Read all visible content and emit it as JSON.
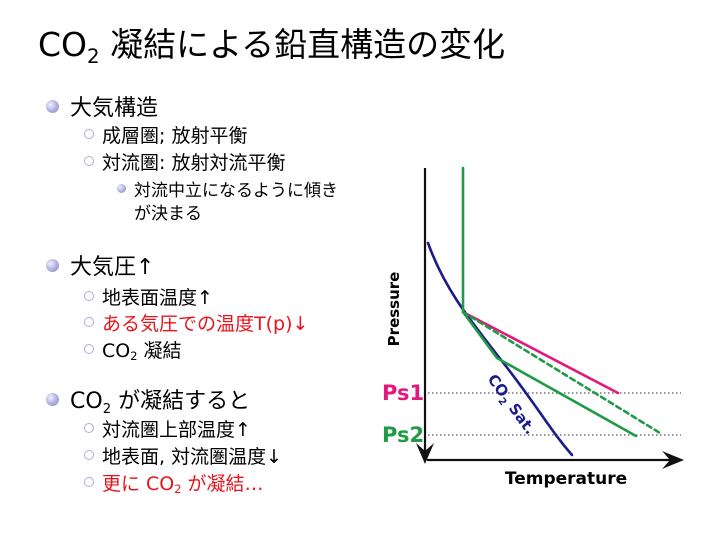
{
  "title": {
    "pre": "CO",
    "sub": "2",
    "post": " 凝結による鉛直構造の変化"
  },
  "outline": {
    "s1": {
      "label": "大気構造",
      "items": [
        {
          "text": "成層圏; 放射平衡"
        },
        {
          "text": "対流圏: 放射対流平衡",
          "detail": {
            "lines": [
              "対流中立になるように傾き",
              "が決まる"
            ]
          }
        }
      ]
    },
    "s2": {
      "label": "大気圧↑",
      "items": [
        {
          "text": "地表面温度↑"
        },
        {
          "text": "ある気圧での温度T(p)↓",
          "highlight": true
        },
        {
          "pre": "CO",
          "sub": "2",
          "post": " 凝結"
        }
      ]
    },
    "s3": {
      "label": {
        "pre": "CO",
        "sub": "2",
        "post": " が凝結すると"
      },
      "items": [
        {
          "text": "対流圏上部温度↑"
        },
        {
          "text": "地表面, 対流圏温度↓"
        },
        {
          "pre": "更に CO",
          "sub": "2",
          "post": " が凝結…",
          "highlight": true
        }
      ]
    }
  },
  "diagram": {
    "y_axis_label": "Pressure",
    "x_axis_label": "Temperature",
    "levels": [
      {
        "label": "Ps1"
      },
      {
        "label": "Ps2"
      }
    ],
    "curve_label": {
      "pre": "CO",
      "sub": "2",
      "post": " Sat."
    }
  },
  "colors": {
    "bullet": "#acacde",
    "highlight": "#e8141c",
    "magenta": "#e2187e",
    "green": "#1f9a46",
    "blue": "#1b1b8a",
    "axis": "#111111"
  }
}
